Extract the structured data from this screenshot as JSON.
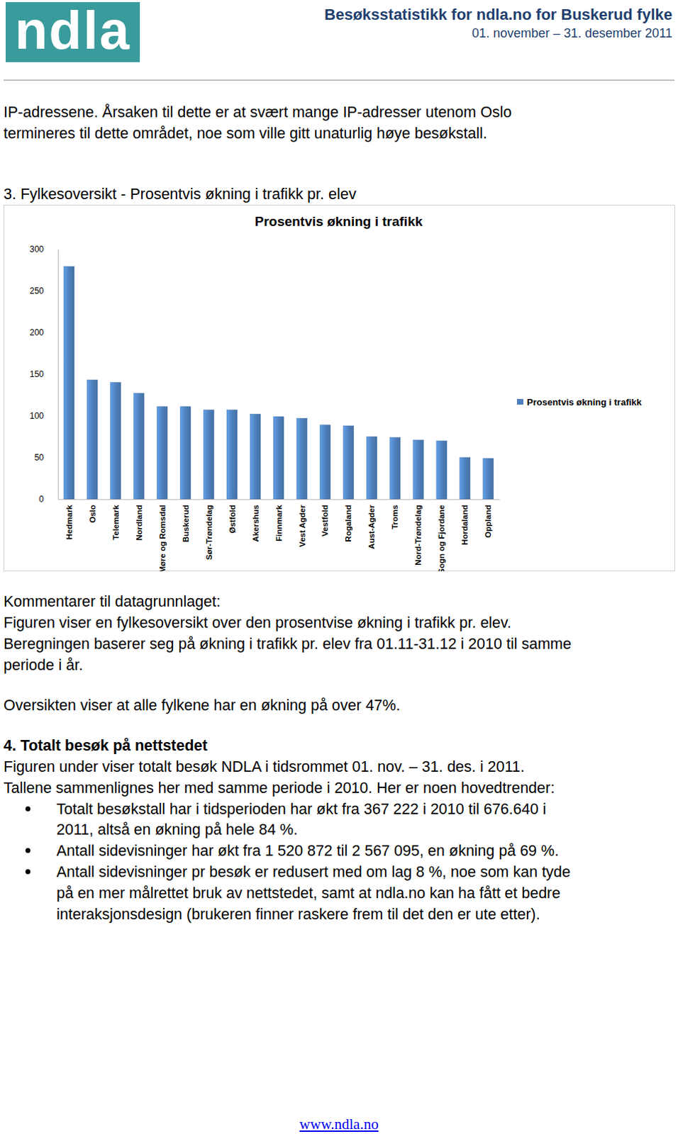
{
  "header": {
    "logo": "ndla",
    "title": "Besøksstatistikk for ndla.no for Buskerud fylke",
    "period": "01. november – 31. desember 2011"
  },
  "intro": [
    "IP-adressene. Årsaken til dette er at svært mange IP-adresser utenom Oslo",
    "termineres til dette området, noe som ville gitt unaturlig høye besøkstall."
  ],
  "section3_heading": "3. Fylkesoversikt - Prosentvis økning i trafikk pr. elev",
  "chart_data": {
    "type": "bar",
    "title": "Prosentvis økning i trafikk",
    "categories": [
      "Hedmark",
      "Oslo",
      "Telemark",
      "Nordland",
      "Møre og Romsdal",
      "Buskerud",
      "Sør-Trøndelag",
      "Østfold",
      "Akershus",
      "Finnmark",
      "Vest Agder",
      "Vestfold",
      "Rogaland",
      "Aust-Agder",
      "Troms",
      "Nord-Trøndelag",
      "Sogn og Fjordane",
      "Hordaland",
      "Oppland"
    ],
    "series": [
      {
        "name": "Prosentvis økning i trafikk",
        "color": "#4f81bd",
        "values": [
          279,
          143,
          140,
          127,
          111,
          111,
          107,
          107,
          102,
          99,
          97,
          89,
          88,
          75,
          74,
          71,
          70,
          50,
          49
        ]
      }
    ],
    "ylim": [
      0,
      300
    ],
    "yticks": [
      0,
      50,
      100,
      150,
      200,
      250,
      300
    ],
    "legend": "right",
    "grid": false
  },
  "comments": [
    "Kommentarer til datagrunnlaget:",
    "Figuren viser en fylkesoversikt over den prosentvise økning i trafikk pr. elev.",
    "Beregningen baserer seg på økning i trafikk pr. elev fra 01.11-31.12 i 2010 til samme",
    "periode i år."
  ],
  "summary": "Oversikten viser at alle fylkene har en økning på over 47%.",
  "section4": {
    "heading": "4. Totalt besøk på nettstedet",
    "lines": [
      "Figuren under viser totalt besøk NDLA i tidsrommet 01. nov. – 31. des. i 2011.",
      "Tallene sammenlignes her med samme periode i 2010. Her er noen hovedtrender:"
    ],
    "bullets": [
      [
        "Totalt besøkstall har i tidsperioden har økt fra 367 222 i 2010 til 676.640 i",
        "2011, altså en økning på hele 84 %."
      ],
      [
        "Antall sidevisninger har økt fra 1 520 872 til 2 567 095, en økning på 69 %."
      ],
      [
        "Antall sidevisninger pr besøk er redusert med om lag 8 %, noe som kan tyde",
        "på en mer målrettet bruk av nettstedet, samt at ndla.no kan ha fått et bedre",
        "interaksjonsdesign (brukeren finner raskere frem til det den er ute etter)."
      ]
    ]
  },
  "footer": "www.ndla.no"
}
